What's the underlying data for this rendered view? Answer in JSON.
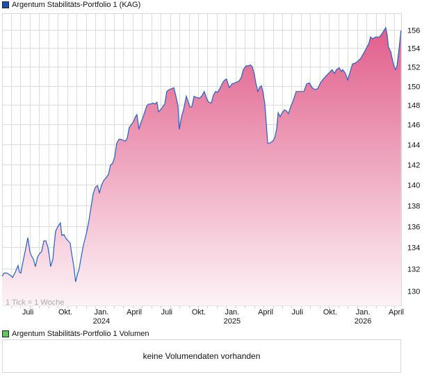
{
  "legend_main": {
    "label": "Argentum Stabilitäts-Portfolio 1 (KAG)",
    "color": "#1a4fb8"
  },
  "legend_volume": {
    "label": "Argentum Stabilitäts-Portfolio 1 Volumen",
    "color": "#5ec85e"
  },
  "volume_message": "keine Volumendaten vorhanden",
  "chart_data": {
    "type": "area",
    "title": "Argentum Stabilitäts-Portfolio 1 (KAG)",
    "xlabel": "",
    "ylabel": "",
    "x_unit": "weeks since start",
    "y_scale": "log",
    "ylim": [
      128.6,
      157.8
    ],
    "grid": true,
    "note": "1 Tick = 1 Woche",
    "line_color": "#2060c8",
    "fill_top_color": "#e05a88",
    "fill_bottom_color": "#fdf3f7",
    "y_ticks": [
      130,
      132,
      134,
      136,
      138,
      140,
      142,
      144,
      146,
      148,
      150,
      152,
      154,
      156
    ],
    "x_ticks": [
      {
        "w": 10.3,
        "label": "Juli",
        "year": ""
      },
      {
        "w": 25.3,
        "label": "Okt.",
        "year": ""
      },
      {
        "w": 39.7,
        "label": "Jan.",
        "year": "2024"
      },
      {
        "w": 52.8,
        "label": "April",
        "year": ""
      },
      {
        "w": 65.8,
        "label": "Juli",
        "year": ""
      },
      {
        "w": 78.6,
        "label": "Okt.",
        "year": ""
      },
      {
        "w": 91.9,
        "label": "Jan.",
        "year": "2025"
      },
      {
        "w": 105.3,
        "label": "April",
        "year": ""
      },
      {
        "w": 118,
        "label": "Juli",
        "year": ""
      },
      {
        "w": 131.1,
        "label": "Okt.",
        "year": ""
      },
      {
        "w": 144.2,
        "label": "Jan.",
        "year": "2026"
      },
      {
        "w": 157.5,
        "label": "April",
        "year": ""
      }
    ],
    "x": [
      0,
      0.8,
      1.9,
      3.3,
      4.2,
      5.3,
      6.4,
      6.9,
      7.5,
      8.3,
      9.2,
      10.3,
      11.1,
      11.7,
      12.5,
      13.3,
      14.2,
      15,
      15.8,
      16.7,
      17.5,
      18.3,
      18.9,
      19.4,
      20.3,
      20.8,
      21.4,
      22.2,
      23.3,
      23.9,
      24.7,
      25.6,
      26.4,
      27.2,
      27.8,
      28.6,
      29.4,
      30,
      30.8,
      31.7,
      32.5,
      33.6,
      34.7,
      35.6,
      36.4,
      37.2,
      38.1,
      38.9,
      39.7,
      40.6,
      41.7,
      42.5,
      43.3,
      44.2,
      45,
      45.8,
      46.7,
      47.5,
      48.3,
      49.2,
      50,
      50.8,
      51.7,
      52.5,
      53.3,
      53.9,
      54.7,
      55.3,
      56.1,
      56.9,
      57.8,
      58.6,
      59.4,
      60.3,
      61.1,
      61.9,
      62.5,
      63.3,
      64.4,
      65,
      65.8,
      66.7,
      67.8,
      68.6,
      69.4,
      70.3,
      70.8,
      71.7,
      72.5,
      73.6,
      74.2,
      75,
      75.8,
      76.7,
      77.5,
      78.9,
      79.7,
      80.8,
      81.7,
      82.5,
      83.6,
      84.4,
      85.3,
      86.1,
      87.2,
      88.1,
      88.9,
      89.7,
      90.8,
      91.9,
      93.1,
      93.9,
      94.7,
      95.6,
      96.4,
      97.5,
      98.3,
      99.2,
      100,
      100.8,
      101.4,
      102.2,
      102.8,
      103.6,
      104.2,
      105,
      105.6,
      106.1,
      106.9,
      108.1,
      108.9,
      109.7,
      110.3,
      111.1,
      111.9,
      112.8,
      113.6,
      114.4,
      115.3,
      116.1,
      116.9,
      117.5,
      118.6,
      119.4,
      120.6,
      121.7,
      122.8,
      123.9,
      125,
      126.1,
      127.2,
      128.6,
      129.7,
      130.8,
      131.9,
      132.8,
      133.6,
      134.7,
      135.6,
      136.1,
      137.2,
      138.1,
      138.9,
      140,
      141.1,
      142.2,
      143.3,
      144.4,
      145.8,
      146.7,
      147.2,
      148.1,
      149.2,
      150,
      150.8,
      151.9,
      153.3,
      153.9,
      154.4,
      155.3,
      156.1,
      156.7,
      157.2,
      157.8,
      158.6,
      159.4
    ],
    "values": [
      131.3,
      131.6,
      131.6,
      131.4,
      131.2,
      131.7,
      132.3,
      131.7,
      131.6,
      132.6,
      133.6,
      134.9,
      133.6,
      133.2,
      132.9,
      132.2,
      133.1,
      133.4,
      133.6,
      134.6,
      134.6,
      134.0,
      133.2,
      132.2,
      132.9,
      134.2,
      135.5,
      135.9,
      136.3,
      135.1,
      135.2,
      134.8,
      134.6,
      134.4,
      133.4,
      132.3,
      130.8,
      131.4,
      132.0,
      133.2,
      134.2,
      135.2,
      136.5,
      137.9,
      139.1,
      139.7,
      139.9,
      139.2,
      139.9,
      140.4,
      140.7,
      141.0,
      141.9,
      142.1,
      142.7,
      144.1,
      144.5,
      144.5,
      144.4,
      144.3,
      144.6,
      145.7,
      146.0,
      146.3,
      146.8,
      147.0,
      145.5,
      146.1,
      146.6,
      147.2,
      147.9,
      148.1,
      148.1,
      148.2,
      148.1,
      148.3,
      147.3,
      147.5,
      147.9,
      148.1,
      149.4,
      149.6,
      149.7,
      149.8,
      149.0,
      147.9,
      145.5,
      146.8,
      147.5,
      148.9,
      148.5,
      147.8,
      147.8,
      148.9,
      148.8,
      148.7,
      148.9,
      149.4,
      148.7,
      148.3,
      148.2,
      149.0,
      149.4,
      149.3,
      149.8,
      150.3,
      150.6,
      150.7,
      149.8,
      150.2,
      150.3,
      150.4,
      150.5,
      150.9,
      151.7,
      152.1,
      152.1,
      152.2,
      152.0,
      151.2,
      150.3,
      149.4,
      149.8,
      150.0,
      149.4,
      148.1,
      146.0,
      144.1,
      144.1,
      144.3,
      144.6,
      145.5,
      147.2,
      146.8,
      147.2,
      147.5,
      147.4,
      147.1,
      147.8,
      148.3,
      148.9,
      149.4,
      149.4,
      149.4,
      149.4,
      150.2,
      150.3,
      149.8,
      149.6,
      149.7,
      150.3,
      150.8,
      151.1,
      151.4,
      151.7,
      151.3,
      151.7,
      151.9,
      151.5,
      151.7,
      151.3,
      150.6,
      151.3,
      152.3,
      152.4,
      152.6,
      152.9,
      153.4,
      154.1,
      154.6,
      155.2,
      155.0,
      155.2,
      155.2,
      155.2,
      155.6,
      156.2,
      155.4,
      154.1,
      153.6,
      152.6,
      152.0,
      151.7,
      152.1,
      153.9,
      155.9
    ]
  }
}
